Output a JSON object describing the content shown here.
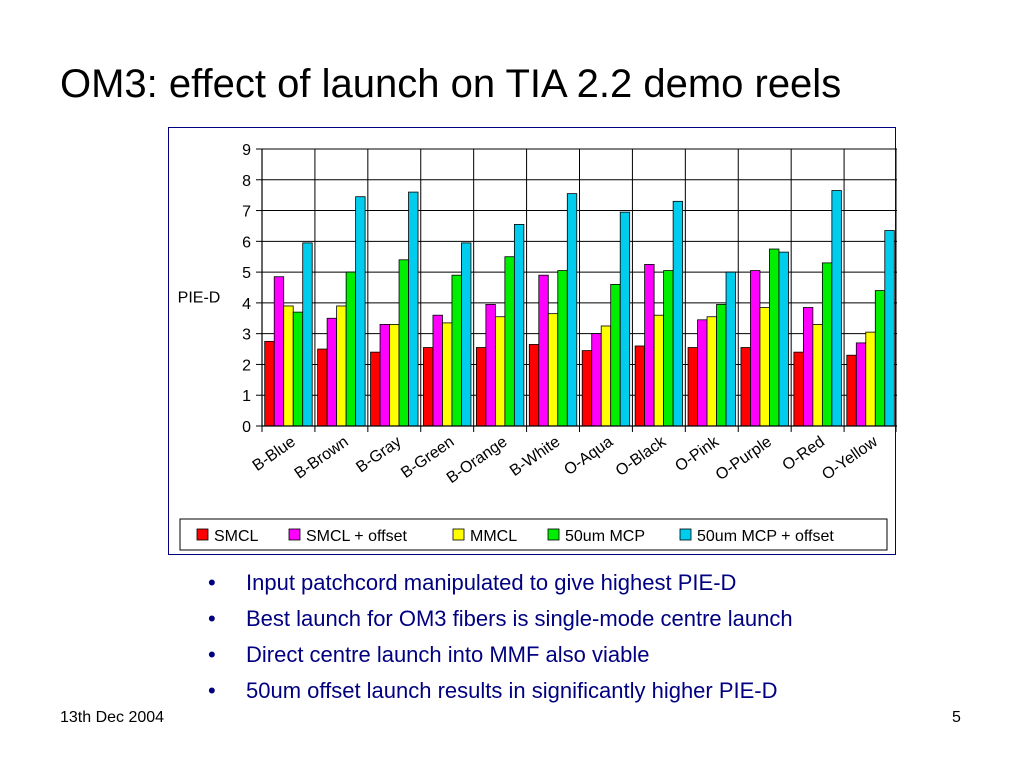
{
  "slide": {
    "title": "OM3: effect of launch on TIA 2.2 demo reels",
    "bullets": [
      "Input patchcord manipulated to give highest PIE-D",
      "Best launch for OM3 fibers is single-mode centre launch",
      "Direct centre launch into MMF also viable",
      "50um offset launch results in significantly higher PIE-D"
    ],
    "footer_date": "13th Dec 2004",
    "page_number": "5",
    "bullet_glyph": "•",
    "bullet_color": "#000080"
  },
  "chart_data": {
    "type": "bar",
    "title": "",
    "xlabel": "",
    "ylabel": "PIE-D",
    "ylim": [
      0,
      9
    ],
    "yticks": [
      0,
      1,
      2,
      3,
      4,
      5,
      6,
      7,
      8,
      9
    ],
    "grid": true,
    "legend_position": "bottom",
    "categories": [
      "B-Blue",
      "B-Brown",
      "B-Gray",
      "B-Green",
      "B-Orange",
      "B-White",
      "O-Aqua",
      "O-Black",
      "O-Pink",
      "O-Purple",
      "O-Red",
      "O-Yellow"
    ],
    "series": [
      {
        "name": "SMCL",
        "color": "#ff0000",
        "values": [
          2.75,
          2.5,
          2.4,
          2.55,
          2.55,
          2.65,
          2.45,
          2.6,
          2.55,
          2.55,
          2.4,
          2.3
        ]
      },
      {
        "name": "SMCL + offset",
        "color": "#ff00ff",
        "values": [
          4.85,
          3.5,
          3.3,
          3.6,
          3.95,
          4.9,
          3.0,
          5.25,
          3.45,
          5.05,
          3.85,
          2.7
        ]
      },
      {
        "name": "MMCL",
        "color": "#ffff00",
        "values": [
          3.9,
          3.9,
          3.3,
          3.35,
          3.55,
          3.65,
          3.25,
          3.6,
          3.55,
          3.85,
          3.3,
          3.05
        ]
      },
      {
        "name": "50um MCP",
        "color": "#00ee00",
        "values": [
          3.7,
          5.0,
          5.4,
          4.9,
          5.5,
          5.05,
          4.6,
          5.05,
          3.95,
          5.75,
          5.3,
          4.4
        ]
      },
      {
        "name": "50um MCP + offset",
        "color": "#00ccee",
        "values": [
          5.95,
          7.45,
          7.6,
          5.95,
          6.55,
          7.55,
          6.95,
          7.3,
          5.0,
          5.65,
          7.65,
          6.35
        ]
      }
    ]
  }
}
